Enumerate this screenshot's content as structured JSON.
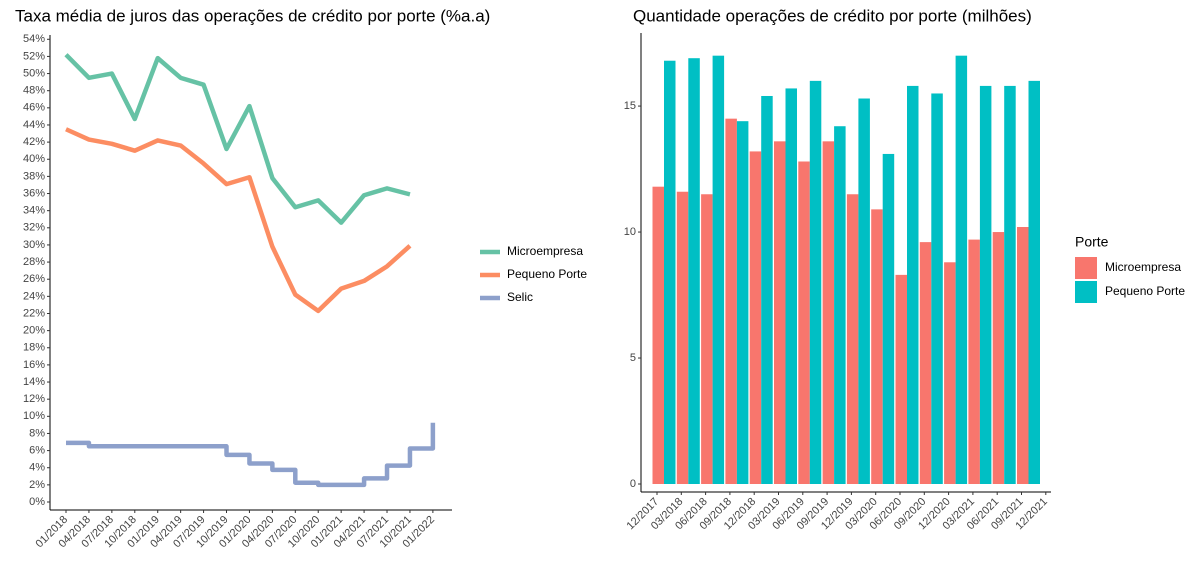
{
  "chart_data": [
    {
      "type": "line",
      "title": "Taxa média de juros das operações de crédito por porte (%a.a)",
      "categories": [
        "01/2018",
        "04/2018",
        "07/2018",
        "10/2018",
        "01/2019",
        "04/2019",
        "07/2019",
        "10/2019",
        "01/2020",
        "04/2020",
        "07/2020",
        "10/2020",
        "01/2021",
        "04/2021",
        "07/2021",
        "10/2021",
        "01/2022"
      ],
      "series": [
        {
          "name": "Microempresa",
          "color": "#66c2a5",
          "values": [
            52.2,
            49.5,
            50,
            44.7,
            51.8,
            49.5,
            48.7,
            41.2,
            46.2,
            37.8,
            34.4,
            35.2,
            32.6,
            35.8,
            36.6,
            35.9,
            null
          ]
        },
        {
          "name": "Pequeno Porte",
          "color": "#fc8d62",
          "values": [
            43.5,
            42.3,
            41.8,
            41.0,
            42.2,
            41.6,
            39.5,
            37.1,
            37.9,
            29.8,
            24.2,
            22.3,
            24.9,
            25.8,
            27.5,
            29.9,
            null
          ]
        },
        {
          "name": "Selic",
          "color": "#8da0cb",
          "step": true,
          "values": [
            6.9,
            6.5,
            6.5,
            6.5,
            6.5,
            6.5,
            6.5,
            5.5,
            4.5,
            3.75,
            2.25,
            2,
            2,
            2.75,
            4.25,
            6.25,
            9.25
          ]
        }
      ],
      "ylim": [
        0,
        54.5
      ],
      "yticks": [
        {
          "value": 0,
          "label": "0%"
        },
        {
          "value": 2,
          "label": "2%"
        },
        {
          "value": 4,
          "label": "4%"
        },
        {
          "value": 6,
          "label": "6%"
        },
        {
          "value": 8,
          "label": "8%"
        },
        {
          "value": 10,
          "label": "10%"
        },
        {
          "value": 12,
          "label": "12%"
        },
        {
          "value": 14,
          "label": "14%"
        },
        {
          "value": 16,
          "label": "16%"
        },
        {
          "value": 18,
          "label": "18%"
        },
        {
          "value": 20,
          "label": "20%"
        },
        {
          "value": 22,
          "label": "22%"
        },
        {
          "value": 24,
          "label": "24%"
        },
        {
          "value": 26,
          "label": "26%"
        },
        {
          "value": 28,
          "label": "28%"
        },
        {
          "value": 30,
          "label": "30%"
        },
        {
          "value": 32,
          "label": "32%"
        },
        {
          "value": 34,
          "label": "34%"
        },
        {
          "value": 36,
          "label": "36%"
        },
        {
          "value": 38,
          "label": "38%"
        },
        {
          "value": 40,
          "label": "40%"
        },
        {
          "value": 42,
          "label": "42%"
        },
        {
          "value": 44,
          "label": "44%"
        },
        {
          "value": 46,
          "label": "46%"
        },
        {
          "value": 48,
          "label": "48%"
        },
        {
          "value": 50,
          "label": "50%"
        },
        {
          "value": 52,
          "label": "52%"
        },
        {
          "value": 54,
          "label": "54%"
        }
      ],
      "grid": false,
      "legend": "right"
    },
    {
      "type": "bar",
      "title": "Quantidade operações de crédito por porte (milhões)",
      "categories": [
        "12/2017",
        "03/2018",
        "06/2018",
        "09/2018",
        "12/2018",
        "03/2019",
        "06/2019",
        "09/2019",
        "12/2019",
        "03/2020",
        "06/2020",
        "09/2020",
        "12/2020",
        "03/2021",
        "06/2021",
        "09/2021",
        "12/2021"
      ],
      "legend_title": "Porte",
      "series": [
        {
          "name": "Microempresa",
          "color": "#f8766d",
          "values": [
            11.8,
            11.6,
            11.5,
            14.5,
            13.2,
            13.6,
            12.8,
            13.6,
            11.5,
            10.9,
            8.3,
            9.6,
            8.8,
            9.7,
            10.0,
            10.2,
            null
          ]
        },
        {
          "name": "Pequeno Porte",
          "color": "#00bfc4",
          "values": [
            16.8,
            16.9,
            17.0,
            14.4,
            15.4,
            15.7,
            16.0,
            14.2,
            15.3,
            13.1,
            15.8,
            15.5,
            17.0,
            15.8,
            15.8,
            16.0,
            null
          ]
        }
      ],
      "ylim": [
        0,
        17.9
      ],
      "yticks": [
        0,
        5,
        10,
        15
      ],
      "grid": false,
      "legend": "right"
    }
  ]
}
